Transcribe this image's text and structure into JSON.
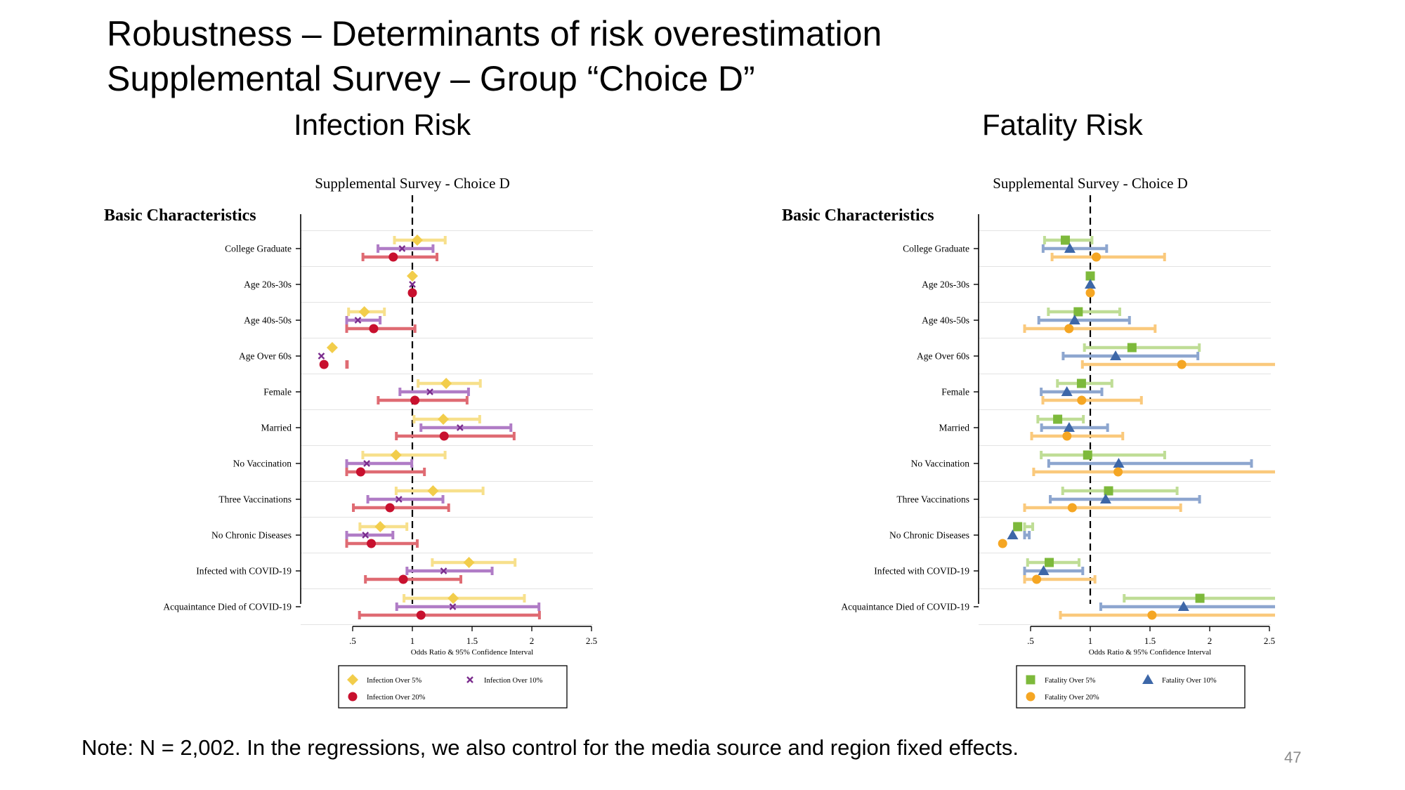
{
  "slide": {
    "title_line1": "Robustness – Determinants of risk overestimation",
    "title_line2": "Supplemental Survey – Group “Choice D”",
    "infection_title": "Infection Risk",
    "fatality_title": "Fatality Risk",
    "note": "Note: N = 2,002. In the regressions, we also control for the media source and region fixed effects.",
    "page_number": "47"
  },
  "chart_data": [
    {
      "type": "scatter",
      "title": "Supplemental Survey - Choice D",
      "section_label": "Basic Characteristics",
      "xlabel": "Odds Ratio & 95% Confidence Interval",
      "xlim": [
        0.5,
        2.5
      ],
      "xticks": [
        ".5",
        "1",
        "1.5",
        "2",
        "2.5"
      ],
      "reference_line": 1,
      "legend_placement": "bottom",
      "categories": [
        "College Graduate",
        "Age 20s-30s",
        "Age 40s-50s",
        "Age Over 60s",
        "Female",
        "Married",
        "No Vaccination",
        "Three Vaccinations",
        "No Chronic Diseases",
        "Infected with COVID-19",
        "Acquaintance Died of COVID-19"
      ],
      "series": [
        {
          "name": "Infection Over 5%",
          "marker": "diamond",
          "color": "#F2CD4B",
          "ci_color": "#F7E08C",
          "values": [
            1.041,
            1.0,
            0.598,
            0.329,
            1.283,
            1.259,
            0.863,
            1.173,
            0.731,
            1.474,
            1.342
          ],
          "lower": [
            0.85,
            1.0,
            0.466,
            0.245,
            1.048,
            1.014,
            0.585,
            0.864,
            0.561,
            1.167,
            0.93
          ],
          "upper": [
            1.275,
            1.0,
            0.766,
            0.441,
            1.569,
            1.564,
            1.274,
            1.592,
            0.954,
            1.86,
            1.938
          ],
          "labels": [
            "1.041 [0.850 - 1.275]",
            "1.000 [1.000 - 1.000]",
            "0.598 [0.466 - 0.766]",
            "0.329 [0.245 - 0.441]",
            "1.283 [1.048 - 1.569]",
            "1.259 [1.014 - 1.564]",
            "0.863 [0.585 - 1.274]",
            "1.173 [0.864 - 1.592]",
            "0.731 [0.561 - 0.954]",
            "1.474 [1.167 - 1.860]",
            "1.342 [0.930 - 1.938]"
          ]
        },
        {
          "name": "Infection Over 10%",
          "marker": "x",
          "color": "#7B2D8E",
          "ci_color": "#B07CC6",
          "values": [
            0.914,
            1.0,
            0.544,
            0.238,
            1.147,
            1.399,
            0.618,
            0.887,
            0.607,
            1.262,
            1.338
          ],
          "lower": [
            0.712,
            1.0,
            0.405,
            0.164,
            0.896,
            1.072,
            0.384,
            0.627,
            0.441,
            0.955,
            0.869
          ],
          "upper": [
            1.173,
            1.0,
            0.73,
            0.345,
            1.47,
            1.825,
            0.995,
            1.256,
            0.837,
            1.668,
            2.06
          ],
          "labels": [
            "0.914 [0.712 - 1.173]",
            "1.000 [1.000 - 1.000]",
            "0.544 [0.405 - 0.730]",
            "0.238 [0.164 - 0.345]",
            "1.147 [0.896 - 1.470]",
            "1.399 [1.072 - 1.825]",
            "0.618 [0.384 - 0.995]",
            "0.887 [0.627 - 1.256]",
            "0.607 [0.441 - 0.837]",
            "1.262 [0.955 - 1.668]",
            "1.338 [0.869 - 2.060]"
          ]
        },
        {
          "name": "Infection Over 20%",
          "marker": "circle",
          "color": "#C8102E",
          "ci_color": "#DF6B73",
          "values": [
            0.84,
            1.0,
            0.676,
            0.26,
            1.021,
            1.266,
            0.567,
            0.812,
            0.656,
            0.924,
            1.072
          ],
          "lower": [
            0.586,
            1.0,
            0.448,
            0.148,
            0.714,
            0.866,
            0.292,
            0.506,
            0.414,
            0.607,
            0.557
          ],
          "upper": [
            1.206,
            1.0,
            1.022,
            0.455,
            1.458,
            1.852,
            1.101,
            1.304,
            1.041,
            1.406,
            2.064
          ],
          "labels": [
            "0.840 [0.586 - 1.206]",
            "1.000 [1.000 - 1.000]",
            "0.676 [0.448 - 1.022]",
            "0.260 [0.148 - 0.455]",
            "1.021 [0.714 - 1.458]",
            "1.266 [0.866 - 1.852]",
            "0.567 [0.292 - 1.101]",
            "0.812 [0.506 - 1.304]",
            "0.656 [0.414 - 1.041]",
            "0.924 [0.607 - 1.406]",
            "1.072 [0.557 - 2.064]"
          ]
        }
      ]
    },
    {
      "type": "scatter",
      "title": "Supplemental Survey - Choice D",
      "section_label": "Basic Characteristics",
      "xlabel": "Odds Ratio & 95% Confidence Interval",
      "xlim": [
        0.5,
        2.5
      ],
      "xticks": [
        ".5",
        "1",
        "1.5",
        "2",
        "2.5"
      ],
      "reference_line": 1,
      "legend_placement": "bottom",
      "categories": [
        "College Graduate",
        "Age 20s-30s",
        "Age 40s-50s",
        "Age Over 60s",
        "Female",
        "Married",
        "No Vaccination",
        "Three Vaccinations",
        "No Chronic Diseases",
        "Infected with COVID-19",
        "Acquaintance Died of COVID-19"
      ],
      "series": [
        {
          "name": "Fatality Over 5%",
          "marker": "square",
          "color": "#7DB93B",
          "ci_color": "#BFDD96",
          "values": [
            0.791,
            1.0,
            0.899,
            1.349,
            0.926,
            0.727,
            0.978,
            1.153,
            0.392,
            0.656,
            1.918
          ],
          "lower": [
            0.617,
            1.0,
            0.649,
            0.951,
            0.725,
            0.561,
            0.589,
            0.769,
            0.297,
            0.475,
            1.284
          ],
          "upper": [
            1.014,
            1.0,
            1.247,
            1.913,
            1.181,
            0.942,
            1.623,
            1.727,
            0.518,
            0.906,
            2.864
          ],
          "labels": [
            "0.791 [0.617 - 1.014]",
            "1.000 [1.000 - 1.000]",
            "0.899 [0.649 - 1.247]",
            "1.349 [0.951 - 1.913]",
            "0.926 [0.725 - 1.181]",
            "0.727 [0.561 - 0.942]",
            "0.978 [0.589 - 1.623]",
            "1.153 [0.769 - 1.727]",
            "0.392 [0.297 - 0.518]",
            "0.656 [0.475 - 0.906]",
            "1.918 [1.284 - 2.864]"
          ]
        },
        {
          "name": "Fatality Over 10%",
          "marker": "triangle",
          "color": "#3D67A8",
          "ci_color": "#8DA6CF",
          "values": [
            0.829,
            1.0,
            0.869,
            1.212,
            0.804,
            0.823,
            1.238,
            1.129,
            0.35,
            0.609,
            1.781
          ],
          "lower": [
            0.605,
            1.0,
            0.569,
            0.773,
            0.589,
            0.592,
            0.652,
            0.665,
            0.251,
            0.396,
            1.088
          ],
          "upper": [
            1.137,
            1.0,
            1.328,
            1.901,
            1.097,
            1.145,
            2.35,
            1.915,
            0.489,
            0.937,
            2.916
          ],
          "labels": [
            "0.829 [0.605 - 1.137]",
            "1.000 [1.000 - 1.000]",
            "0.869 [0.569 - 1.328]",
            "1.212 [0.773 - 1.901]",
            "0.804 [0.589 - 1.097]",
            "0.823 [0.592 - 1.145]",
            "1.238 [0.652 - 2.350]",
            "1.129 [0.665 - 1.915]",
            "0.350 [0.251 - 0.489]",
            "0.609 [0.396 - 0.937]",
            "1.781 [1.088 - 2.916]"
          ]
        },
        {
          "name": "Fatality Over 20%",
          "marker": "circle",
          "color": "#F5A623",
          "ci_color": "#FAC97C",
          "values": [
            1.05,
            1.0,
            0.822,
            1.766,
            0.928,
            0.805,
            1.233,
            0.849,
            0.266,
            0.551,
            1.517
          ],
          "lower": [
            0.68,
            1.0,
            0.438,
            0.934,
            0.603,
            0.509,
            0.526,
            0.411,
            0.171,
            0.292,
            0.75
          ],
          "upper": [
            1.622,
            1.0,
            1.543,
            3.338,
            1.428,
            1.272,
            2.892,
            1.757,
            0.415,
            1.039,
            3.068
          ],
          "labels": [
            "1.050 [0.680 - 1.622]",
            "1.000 [1.000 - 1.000]",
            "0.822 [0.438 - 1.543]",
            "1.766 [0.934 - 3.338]",
            "0.928 [0.603 - 1.428]",
            "0.805 [0.509 - 1.272]",
            "1.233 [0.526 - 2.892]",
            "0.849 [0.411 - 1.757]",
            "0.266 [0.171 - 0.415]",
            "0.551 [0.292 - 1.039]",
            "1.517 [0.750 - 3.068]"
          ]
        }
      ]
    }
  ]
}
